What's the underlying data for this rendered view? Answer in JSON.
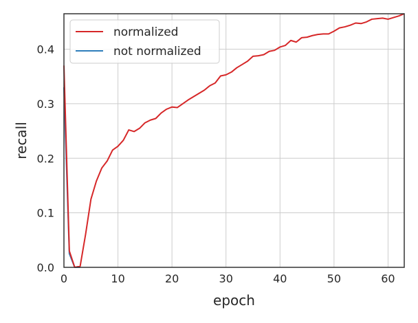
{
  "chart_data": {
    "type": "line",
    "title": "",
    "xlabel": "epoch",
    "ylabel": "recall",
    "xlim": [
      0,
      63
    ],
    "ylim": [
      0,
      0.465
    ],
    "xticks": [
      0,
      10,
      20,
      30,
      40,
      50,
      60
    ],
    "yticks": [
      0.0,
      0.1,
      0.2,
      0.3,
      0.4
    ],
    "xtick_labels": [
      "0",
      "10",
      "20",
      "30",
      "40",
      "50",
      "60"
    ],
    "ytick_labels": [
      "0.0",
      "0.1",
      "0.2",
      "0.3",
      "0.4"
    ],
    "grid": true,
    "legend_position": "top-left",
    "series": [
      {
        "name": "normalized",
        "color": "#d62728",
        "x": [
          0,
          1,
          2,
          3,
          4,
          5,
          6,
          7,
          8,
          9,
          10,
          11,
          12,
          13,
          14,
          15,
          16,
          17,
          18,
          19,
          20,
          21,
          22,
          23,
          24,
          25,
          26,
          27,
          28,
          29,
          30,
          31,
          32,
          33,
          34,
          35,
          36,
          37,
          38,
          39,
          40,
          41,
          42,
          43,
          44,
          45,
          46,
          47,
          48,
          49,
          50,
          51,
          52,
          53,
          54,
          55,
          56,
          57,
          58,
          59,
          60,
          61,
          62,
          63
        ],
        "y": [
          0.37,
          0.03,
          0.0,
          0.002,
          0.06,
          0.125,
          0.158,
          0.182,
          0.195,
          0.215,
          0.222,
          0.233,
          0.252,
          0.249,
          0.255,
          0.265,
          0.27,
          0.273,
          0.283,
          0.29,
          0.294,
          0.293,
          0.3,
          0.307,
          0.313,
          0.319,
          0.325,
          0.333,
          0.338,
          0.351,
          0.353,
          0.358,
          0.366,
          0.372,
          0.378,
          0.387,
          0.388,
          0.39,
          0.396,
          0.398,
          0.404,
          0.407,
          0.416,
          0.413,
          0.421,
          0.422,
          0.425,
          0.427,
          0.428,
          0.428,
          0.433,
          0.439,
          0.441,
          0.444,
          0.448,
          0.447,
          0.45,
          0.455,
          0.456,
          0.457,
          0.455,
          0.458,
          0.461,
          0.465
        ]
      },
      {
        "name": "not normalized",
        "color": "#2d7dbb",
        "x": [
          0,
          1,
          2,
          3
        ],
        "y": [
          0.33,
          0.025,
          0.0,
          0.0
        ]
      }
    ]
  }
}
